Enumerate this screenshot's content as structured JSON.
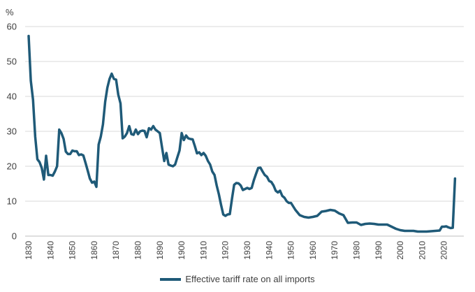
{
  "chart_data": {
    "type": "line",
    "title": "",
    "ylabel": "%",
    "xlabel": "",
    "ylim": [
      0,
      60
    ],
    "xlim": [
      1830,
      2025
    ],
    "y_ticks": [
      0,
      10,
      20,
      30,
      40,
      50,
      60
    ],
    "x_ticks": [
      1830,
      1840,
      1850,
      1860,
      1870,
      1880,
      1890,
      1900,
      1910,
      1920,
      1930,
      1940,
      1950,
      1960,
      1970,
      1980,
      1990,
      2000,
      2010,
      2020
    ],
    "grid": true,
    "legend_position": "bottom",
    "series": [
      {
        "name": "Effective tariff rate on all imports",
        "color": "#1f5a78",
        "x": [
          1830,
          1831,
          1832,
          1833,
          1834,
          1835,
          1836,
          1837,
          1838,
          1839,
          1840,
          1841,
          1842,
          1843,
          1844,
          1845,
          1846,
          1847,
          1848,
          1849,
          1850,
          1851,
          1852,
          1853,
          1854,
          1855,
          1856,
          1857,
          1858,
          1859,
          1860,
          1861,
          1862,
          1863,
          1864,
          1865,
          1866,
          1867,
          1868,
          1869,
          1870,
          1871,
          1872,
          1873,
          1874,
          1875,
          1876,
          1877,
          1878,
          1879,
          1880,
          1881,
          1882,
          1883,
          1884,
          1885,
          1886,
          1887,
          1888,
          1889,
          1890,
          1891,
          1892,
          1893,
          1894,
          1895,
          1896,
          1897,
          1898,
          1899,
          1900,
          1901,
          1902,
          1903,
          1904,
          1905,
          1906,
          1907,
          1908,
          1909,
          1910,
          1911,
          1912,
          1913,
          1914,
          1915,
          1916,
          1917,
          1918,
          1919,
          1920,
          1921,
          1922,
          1923,
          1924,
          1925,
          1926,
          1927,
          1928,
          1929,
          1930,
          1931,
          1932,
          1933,
          1934,
          1935,
          1936,
          1937,
          1938,
          1939,
          1940,
          1941,
          1942,
          1943,
          1944,
          1945,
          1946,
          1947,
          1948,
          1949,
          1950,
          1952,
          1954,
          1956,
          1958,
          1960,
          1962,
          1964,
          1966,
          1968,
          1970,
          1972,
          1974,
          1976,
          1978,
          1980,
          1982,
          1984,
          1986,
          1988,
          1990,
          1992,
          1994,
          1996,
          1998,
          2000,
          2002,
          2004,
          2006,
          2008,
          2010,
          2012,
          2014,
          2016,
          2018,
          2019,
          2020,
          2021,
          2022,
          2023,
          2024,
          2025
        ],
        "values": [
          57.3,
          44.5,
          39,
          28.5,
          22,
          21.2,
          19.5,
          16.2,
          23,
          17.5,
          17.5,
          17.3,
          18.5,
          20,
          30.5,
          29.5,
          27.8,
          24.2,
          23.5,
          23.5,
          24.5,
          24.3,
          24.3,
          23.2,
          23.4,
          23.1,
          21,
          18.8,
          16.5,
          15.3,
          15.6,
          14.1,
          26.2,
          28.5,
          32,
          38.5,
          42.5,
          45,
          46.5,
          45,
          44.8,
          40.5,
          38,
          28,
          28.5,
          29.5,
          31.5,
          29.2,
          29,
          30.5,
          29.2,
          30,
          30.2,
          30.1,
          28.3,
          30.9,
          30.5,
          31.5,
          30.5,
          30,
          29.5,
          25.5,
          21.5,
          23.8,
          20.5,
          20.2,
          20,
          20.5,
          22.5,
          24.5,
          29.5,
          27.5,
          28.8,
          28,
          27.8,
          27.7,
          25.8,
          23.7,
          24,
          23.2,
          23.8,
          23,
          21.5,
          20.5,
          18.5,
          17.5,
          14.5,
          12,
          9,
          6.2,
          5.8,
          6.2,
          6.3,
          10.7,
          14.7,
          15.2,
          15.1,
          14.5,
          13.2,
          13.5,
          13.8,
          13.5,
          13.8,
          16,
          17.8,
          19.5,
          19.6,
          18.5,
          17.5,
          17,
          15.8,
          15.5,
          14.5,
          13,
          12.5,
          13,
          11.5,
          11,
          10,
          9.5,
          9.5,
          7.5,
          6,
          5.5,
          5.3,
          5.5,
          5.8,
          7,
          7.2,
          7.5,
          7.3,
          6.5,
          6,
          3.8,
          3.9,
          3.9,
          3.2,
          3.5,
          3.6,
          3.5,
          3.3,
          3.3,
          3.3,
          2.7,
          2.1,
          1.7,
          1.5,
          1.5,
          1.5,
          1.3,
          1.3,
          1.3,
          1.4,
          1.5,
          1.6,
          2.7,
          2.7,
          2.8,
          2.5,
          2.3,
          2.4,
          16.5
        ]
      }
    ]
  }
}
